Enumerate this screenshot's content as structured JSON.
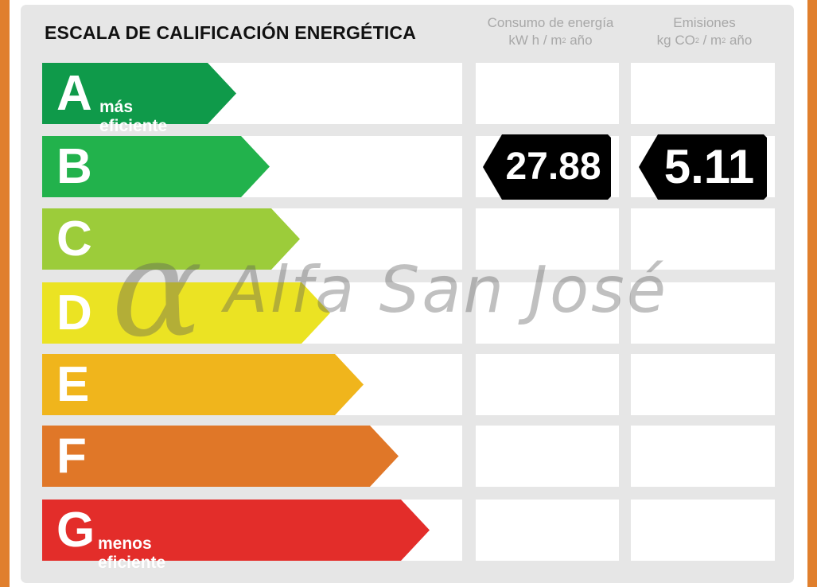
{
  "title": "ESCALA DE CALIFICACIÓN ENERGÉTICA",
  "columns": {
    "energy": {
      "line1": "Consumo de energía",
      "line2_pre": "kW h / m",
      "line2_sup": "2",
      "line2_post": " año"
    },
    "emissions": {
      "line1": "Emisiones",
      "line2_pre": "kg CO",
      "line2_sub": "2",
      "line2_mid": " / m",
      "line2_sup": "2",
      "line2_post": " año"
    }
  },
  "ratings": [
    {
      "letter": "A",
      "sub": "más eficiente",
      "color": "#0f9a4a"
    },
    {
      "letter": "B",
      "sub": "",
      "color": "#22b24c"
    },
    {
      "letter": "C",
      "sub": "",
      "color": "#9ccc3a"
    },
    {
      "letter": "D",
      "sub": "",
      "color": "#ebe323"
    },
    {
      "letter": "E",
      "sub": "",
      "color": "#f0b51c"
    },
    {
      "letter": "F",
      "sub": "",
      "color": "#e07728"
    },
    {
      "letter": "G",
      "sub": "menos eficiente",
      "color": "#e32d2a"
    }
  ],
  "energy_value": "27.88",
  "emissions_value": "5.11",
  "rating_row": "B",
  "watermark": {
    "symbol": "α",
    "text": "Alfa San José"
  },
  "colors": {
    "frame": "#e07f2d",
    "panel": "#e6e6e6",
    "marker": "#000000"
  }
}
